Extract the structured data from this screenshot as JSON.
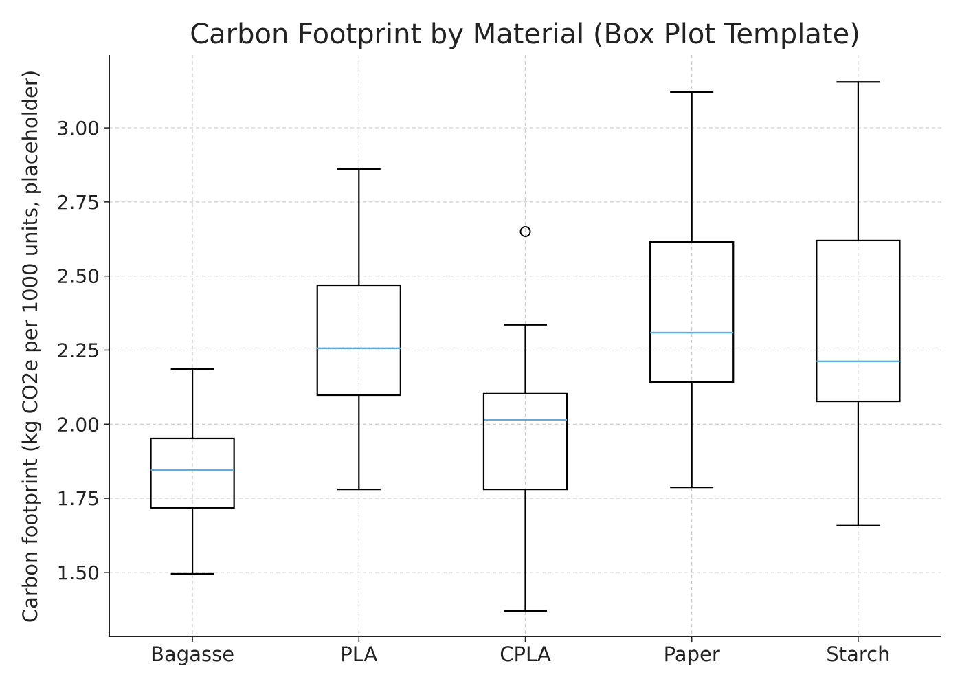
{
  "chart_data": {
    "type": "box",
    "title": "Carbon Footprint by Material (Box Plot Template)",
    "xlabel": "",
    "ylabel": "Carbon footprint (kg CO2e per 1000 units, placeholder)",
    "ylim": [
      1.284,
      3.246
    ],
    "yticks": [
      "1.50",
      "1.75",
      "2.00",
      "2.25",
      "2.50",
      "2.75",
      "3.00"
    ],
    "grid": true,
    "categories": [
      "Bagasse",
      "PLA",
      "CPLA",
      "Paper",
      "Starch"
    ],
    "boxes": [
      {
        "whislo": 1.495,
        "q1": 1.718,
        "med": 1.845,
        "q3": 1.952,
        "whishi": 2.186,
        "fliers": []
      },
      {
        "whislo": 1.78,
        "q1": 2.098,
        "med": 2.256,
        "q3": 2.469,
        "whishi": 2.861,
        "fliers": []
      },
      {
        "whislo": 1.37,
        "q1": 1.78,
        "med": 2.015,
        "q3": 2.103,
        "whishi": 2.335,
        "fliers": [
          2.65
        ]
      },
      {
        "whislo": 1.787,
        "q1": 2.142,
        "med": 2.309,
        "q3": 2.615,
        "whishi": 3.121,
        "fliers": []
      },
      {
        "whislo": 1.658,
        "q1": 2.077,
        "med": 2.212,
        "q3": 2.62,
        "whishi": 3.155,
        "fliers": []
      }
    ],
    "colors": {
      "box": "#000000",
      "median": "#5dade2",
      "grid": "#cccccc"
    }
  }
}
